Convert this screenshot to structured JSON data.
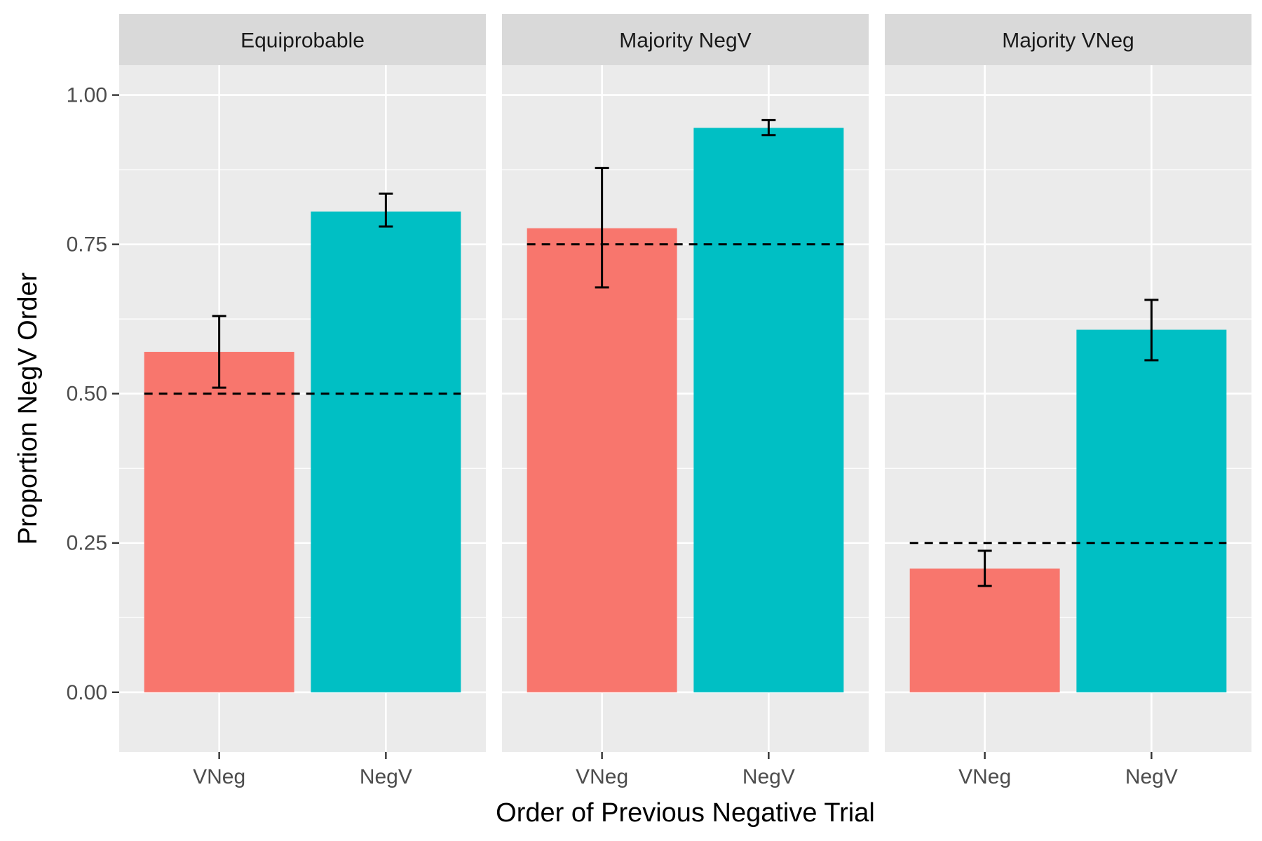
{
  "chart_data": {
    "type": "bar",
    "xlabel": "Order of Previous Negative Trial",
    "ylabel": "Proportion NegV Order",
    "ylim": [
      -0.1,
      1.05
    ],
    "yticks": [
      0.0,
      0.25,
      0.5,
      0.75,
      1.0
    ],
    "ytick_labels": [
      "0.00",
      "0.25",
      "0.50",
      "0.75",
      "1.00"
    ],
    "categories": [
      "VNeg",
      "NegV"
    ],
    "colors": {
      "VNeg": "#F8766D",
      "NegV": "#00BFC4"
    },
    "panel_background": "#EBEBEB",
    "strip_background": "#D9D9D9",
    "grid": true,
    "legend": "none",
    "facets": [
      {
        "name": "Equiprobable",
        "values": [
          0.57,
          0.805
        ],
        "error_low": [
          0.51,
          0.78
        ],
        "error_high": [
          0.63,
          0.835
        ],
        "reference": 0.5
      },
      {
        "name": "Majority NegV",
        "values": [
          0.777,
          0.945
        ],
        "error_low": [
          0.678,
          0.933
        ],
        "error_high": [
          0.878,
          0.958
        ],
        "reference": 0.75
      },
      {
        "name": "Majority VNeg",
        "values": [
          0.207,
          0.607
        ],
        "error_low": [
          0.178,
          0.556
        ],
        "error_high": [
          0.237,
          0.657
        ],
        "reference": 0.25
      }
    ]
  }
}
